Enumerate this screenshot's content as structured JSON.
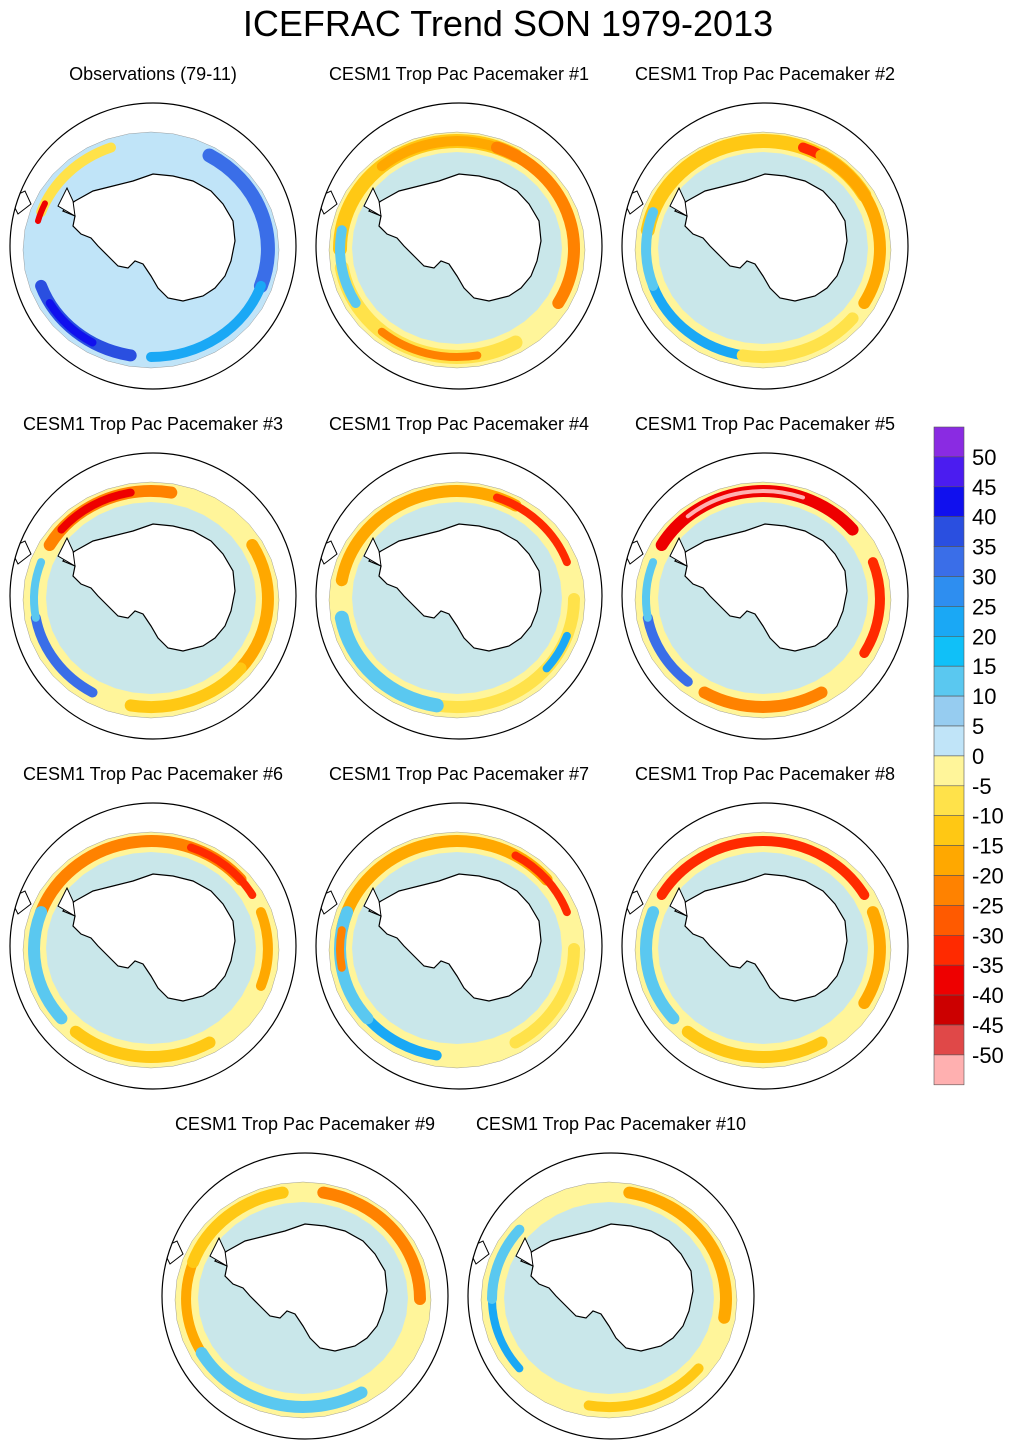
{
  "title": "ICEFRAC Trend SON 1979-2013",
  "panels": [
    {
      "label": "Observations (79-11)",
      "pattern": "obs"
    },
    {
      "label": "CESM1 Trop Pac Pacemaker #1",
      "pattern": "m1"
    },
    {
      "label": "CESM1 Trop Pac Pacemaker #2",
      "pattern": "m2"
    },
    {
      "label": "CESM1 Trop Pac Pacemaker #3",
      "pattern": "m3"
    },
    {
      "label": "CESM1 Trop Pac Pacemaker #4",
      "pattern": "m4"
    },
    {
      "label": "CESM1 Trop Pac Pacemaker #5",
      "pattern": "m5"
    },
    {
      "label": "CESM1 Trop Pac Pacemaker #6",
      "pattern": "m6"
    },
    {
      "label": "CESM1 Trop Pac Pacemaker #7",
      "pattern": "m7"
    },
    {
      "label": "CESM1 Trop Pac Pacemaker #8",
      "pattern": "m8"
    },
    {
      "label": "CESM1 Trop Pac Pacemaker #9",
      "pattern": "m9"
    },
    {
      "label": "CESM1 Trop Pac Pacemaker #10",
      "pattern": "m10"
    }
  ],
  "colorbar": {
    "labels": [
      "50",
      "45",
      "40",
      "35",
      "30",
      "25",
      "20",
      "15",
      "10",
      "5",
      "0",
      "-5",
      "-10",
      "-15",
      "-20",
      "-25",
      "-30",
      "-35",
      "-40",
      "-45",
      "-50"
    ],
    "colors": [
      "#8a2be2",
      "#4b1cf0",
      "#1010ee",
      "#2a4fe0",
      "#3a6ee8",
      "#2e8ef0",
      "#1aa8f5",
      "#10c0f8",
      "#5ac8f0",
      "#96ccf0",
      "#c0e4f8",
      "#fff59a",
      "#ffe24a",
      "#ffc814",
      "#ffa800",
      "#ff8200",
      "#ff5a00",
      "#ff2a00",
      "#ee0000",
      "#cc0000",
      "#e04848",
      "#ffb0b0"
    ]
  }
}
